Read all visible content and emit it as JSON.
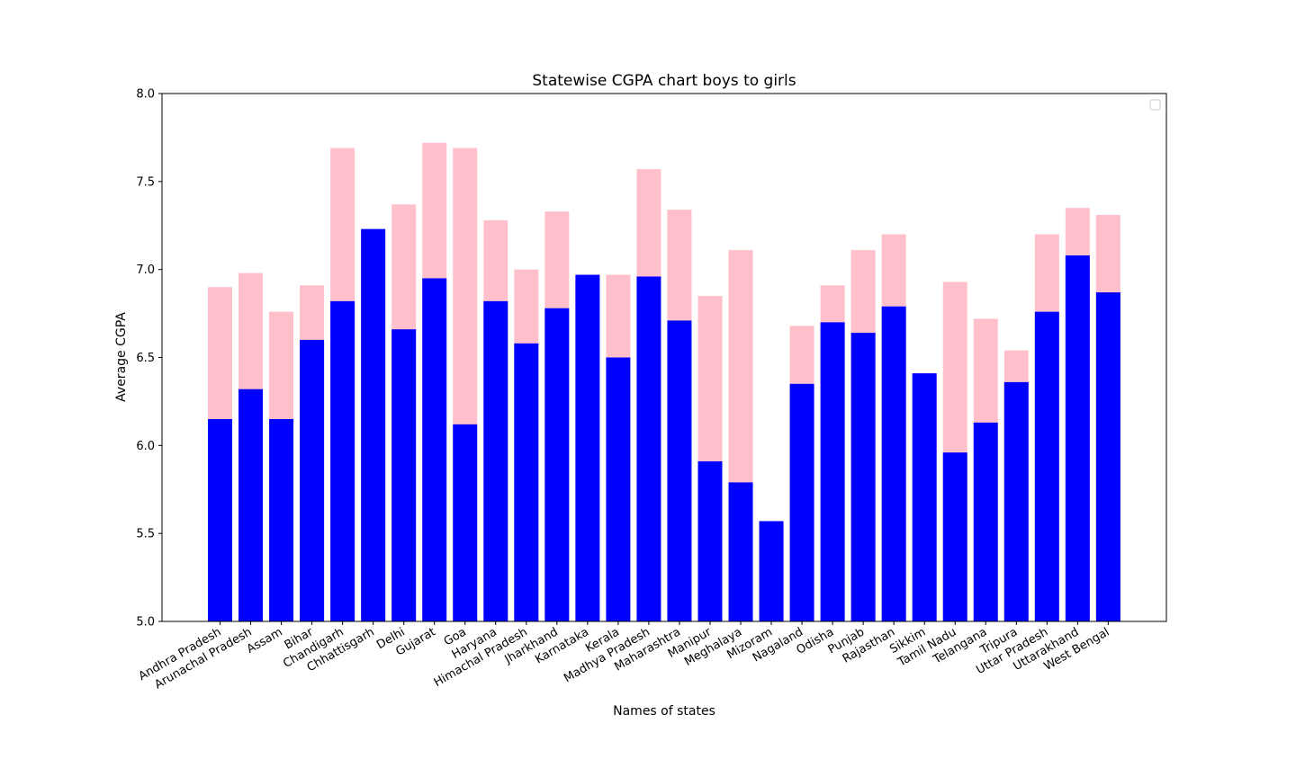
{
  "chart_data": {
    "type": "bar",
    "stacked": false,
    "overlay": "girls bars drawn behind boys bars",
    "title": "Statewise CGPA chart boys to girls",
    "xlabel": "Names of states",
    "ylabel": "Average CGPA",
    "ylim": [
      5.0,
      8.0
    ],
    "yticks": [
      "5.0",
      "5.5",
      "6.0",
      "6.5",
      "7.0",
      "7.5",
      "8.0"
    ],
    "grid": false,
    "legend": {
      "placement": "top-right",
      "entries": []
    },
    "categories": [
      "Andhra Pradesh",
      "Arunachal Pradesh",
      "Assam",
      "Bihar",
      "Chandigarh",
      "Chhattisgarh",
      "Delhi",
      "Gujarat",
      "Goa",
      "Haryana",
      "Himachal Pradesh",
      "Jharkhand",
      "Karnataka",
      "Kerala",
      "Madhya Pradesh",
      "Maharashtra",
      "Manipur",
      "Meghalaya",
      "Mizoram",
      "Nagaland",
      "Odisha",
      "Punjab",
      "Rajasthan",
      "Sikkim",
      "Tamil Nadu",
      "Telangana",
      "Tripura",
      "Uttar Pradesh",
      "Uttarakhand",
      "West Bengal"
    ],
    "series": [
      {
        "color": "#ffc0cb",
        "values": [
          6.9,
          6.98,
          6.76,
          6.91,
          7.69,
          7.22,
          7.37,
          7.72,
          7.69,
          7.28,
          7.0,
          7.33,
          6.96,
          6.97,
          7.57,
          7.34,
          6.85,
          7.11,
          5.56,
          6.68,
          6.91,
          7.11,
          7.2,
          6.41,
          6.93,
          6.72,
          6.54,
          7.2,
          7.35,
          7.31
        ]
      },
      {
        "color": "#0000ff",
        "values": [
          6.15,
          6.32,
          6.15,
          6.6,
          6.82,
          7.23,
          6.66,
          6.95,
          6.12,
          6.82,
          6.58,
          6.78,
          6.97,
          6.5,
          6.96,
          6.71,
          5.91,
          5.79,
          5.57,
          6.35,
          6.7,
          6.64,
          6.79,
          6.41,
          5.96,
          6.13,
          6.36,
          6.76,
          7.08,
          6.87
        ]
      }
    ]
  }
}
